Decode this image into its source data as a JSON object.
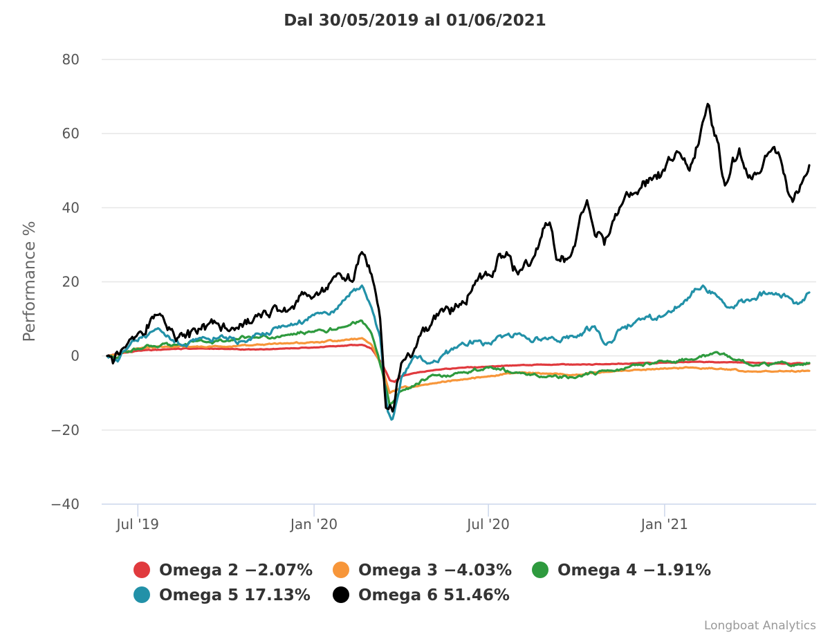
{
  "chart_data": {
    "type": "line",
    "title": "Dal 30/05/2019 al 01/06/2021",
    "ylabel": "Performance %",
    "xlabel": "",
    "ylim": [
      -40,
      80
    ],
    "yticks": [
      80,
      60,
      40,
      20,
      0,
      -20,
      -40
    ],
    "ytick_labels": [
      "80",
      "60",
      "40",
      "20",
      "0",
      "−20",
      "−40"
    ],
    "xlim": [
      "2019-05-30",
      "2021-06-01"
    ],
    "xticks": [
      {
        "date": "2019-07-01",
        "label": "Jul '19"
      },
      {
        "date": "2020-01-01",
        "label": "Jan '20"
      },
      {
        "date": "2020-07-01",
        "label": "Jul '20"
      },
      {
        "date": "2021-01-01",
        "label": "Jan '21"
      }
    ],
    "grid": true,
    "legend_position": "bottom",
    "credits": "Longboat Analytics",
    "series": [
      {
        "name": "Omega 2 −2.07%",
        "color": "#e03a3e",
        "points": [
          [
            "2019-05-30",
            0
          ],
          [
            "2019-06-15",
            0.8
          ],
          [
            "2019-07-01",
            1.4
          ],
          [
            "2019-08-01",
            1.8
          ],
          [
            "2019-09-01",
            2.0
          ],
          [
            "2019-10-01",
            1.9
          ],
          [
            "2019-11-01",
            1.7
          ],
          [
            "2019-12-01",
            2.0
          ],
          [
            "2020-01-01",
            2.3
          ],
          [
            "2020-02-01",
            2.7
          ],
          [
            "2020-02-20",
            3.0
          ],
          [
            "2020-03-01",
            2.0
          ],
          [
            "2020-03-12",
            -2.0
          ],
          [
            "2020-03-20",
            -6.5
          ],
          [
            "2020-03-25",
            -7.0
          ],
          [
            "2020-04-01",
            -5.5
          ],
          [
            "2020-04-15",
            -4.6
          ],
          [
            "2020-05-01",
            -4.0
          ],
          [
            "2020-06-01",
            -3.2
          ],
          [
            "2020-07-01",
            -2.9
          ],
          [
            "2020-08-01",
            -2.5
          ],
          [
            "2020-09-01",
            -2.4
          ],
          [
            "2020-10-01",
            -2.3
          ],
          [
            "2020-11-01",
            -2.2
          ],
          [
            "2020-12-01",
            -2.0
          ],
          [
            "2021-01-01",
            -1.8
          ],
          [
            "2021-02-01",
            -1.6
          ],
          [
            "2021-03-01",
            -1.7
          ],
          [
            "2021-04-01",
            -1.8
          ],
          [
            "2021-05-01",
            -2.0
          ],
          [
            "2021-06-01",
            -2.07
          ]
        ]
      },
      {
        "name": "Omega 3 −4.03%",
        "color": "#f7963a",
        "points": [
          [
            "2019-05-30",
            0
          ],
          [
            "2019-06-15",
            1.0
          ],
          [
            "2019-07-01",
            2.0
          ],
          [
            "2019-08-01",
            2.5
          ],
          [
            "2019-09-01",
            2.6
          ],
          [
            "2019-10-01",
            2.4
          ],
          [
            "2019-11-01",
            3.0
          ],
          [
            "2019-12-01",
            3.4
          ],
          [
            "2020-01-01",
            3.6
          ],
          [
            "2020-02-01",
            4.2
          ],
          [
            "2020-02-20",
            4.8
          ],
          [
            "2020-03-01",
            3.0
          ],
          [
            "2020-03-12",
            -3.0
          ],
          [
            "2020-03-20",
            -10.0
          ],
          [
            "2020-03-25",
            -9.5
          ],
          [
            "2020-04-01",
            -8.5
          ],
          [
            "2020-04-15",
            -8.3
          ],
          [
            "2020-05-01",
            -7.5
          ],
          [
            "2020-06-01",
            -6.5
          ],
          [
            "2020-07-01",
            -5.5
          ],
          [
            "2020-08-01",
            -4.5
          ],
          [
            "2020-09-01",
            -4.8
          ],
          [
            "2020-10-01",
            -5.0
          ],
          [
            "2020-11-01",
            -4.3
          ],
          [
            "2020-12-01",
            -3.7
          ],
          [
            "2021-01-01",
            -3.3
          ],
          [
            "2021-02-01",
            -3.2
          ],
          [
            "2021-03-01",
            -3.4
          ],
          [
            "2021-04-01",
            -4.2
          ],
          [
            "2021-05-01",
            -4.0
          ],
          [
            "2021-06-01",
            -4.03
          ]
        ]
      },
      {
        "name": "Omega 4 −1.91%",
        "color": "#2e9a3e",
        "points": [
          [
            "2019-05-30",
            0
          ],
          [
            "2019-06-10",
            -0.5
          ],
          [
            "2019-06-20",
            1.0
          ],
          [
            "2019-07-01",
            2.0
          ],
          [
            "2019-07-20",
            2.5
          ],
          [
            "2019-08-10",
            3.0
          ],
          [
            "2019-09-01",
            4.0
          ],
          [
            "2019-10-01",
            4.0
          ],
          [
            "2019-11-01",
            5.0
          ],
          [
            "2019-12-01",
            5.5
          ],
          [
            "2020-01-01",
            6.5
          ],
          [
            "2020-02-01",
            7.8
          ],
          [
            "2020-02-20",
            9.5
          ],
          [
            "2020-03-01",
            6.0
          ],
          [
            "2020-03-12",
            -4.0
          ],
          [
            "2020-03-20",
            -13.5
          ],
          [
            "2020-03-25",
            -12.0
          ],
          [
            "2020-04-01",
            -9.5
          ],
          [
            "2020-04-15",
            -8.0
          ],
          [
            "2020-05-01",
            -5.5
          ],
          [
            "2020-06-01",
            -4.5
          ],
          [
            "2020-07-01",
            -3.2
          ],
          [
            "2020-08-01",
            -4.6
          ],
          [
            "2020-09-01",
            -5.5
          ],
          [
            "2020-10-01",
            -5.8
          ],
          [
            "2020-11-01",
            -4.0
          ],
          [
            "2020-12-01",
            -2.5
          ],
          [
            "2021-01-01",
            -1.5
          ],
          [
            "2021-02-01",
            -1.0
          ],
          [
            "2021-02-25",
            1.0
          ],
          [
            "2021-03-15",
            -1.0
          ],
          [
            "2021-04-01",
            -2.5
          ],
          [
            "2021-05-01",
            -1.8
          ],
          [
            "2021-05-20",
            -2.3
          ],
          [
            "2021-06-01",
            -1.91
          ]
        ]
      },
      {
        "name": "Omega 5 17.13%",
        "color": "#2291a8",
        "points": [
          [
            "2019-05-30",
            0
          ],
          [
            "2019-06-10",
            -1.5
          ],
          [
            "2019-06-20",
            2.0
          ],
          [
            "2019-07-01",
            4.0
          ],
          [
            "2019-07-15",
            6.5
          ],
          [
            "2019-08-01",
            5.5
          ],
          [
            "2019-08-15",
            3.0
          ],
          [
            "2019-09-01",
            4.5
          ],
          [
            "2019-10-01",
            5.0
          ],
          [
            "2019-10-20",
            4.0
          ],
          [
            "2019-11-01",
            6.0
          ],
          [
            "2019-12-01",
            8.0
          ],
          [
            "2020-01-01",
            11.0
          ],
          [
            "2020-01-20",
            12.0
          ],
          [
            "2020-02-01",
            15.0
          ],
          [
            "2020-02-20",
            19.0
          ],
          [
            "2020-03-01",
            13.0
          ],
          [
            "2020-03-10",
            5.0
          ],
          [
            "2020-03-18",
            -15.0
          ],
          [
            "2020-03-23",
            -17.0
          ],
          [
            "2020-04-01",
            -6.0
          ],
          [
            "2020-04-15",
            0.0
          ],
          [
            "2020-05-01",
            -2.0
          ],
          [
            "2020-06-01",
            3.0
          ],
          [
            "2020-06-20",
            4.0
          ],
          [
            "2020-07-01",
            3.5
          ],
          [
            "2020-07-15",
            5.0
          ],
          [
            "2020-08-01",
            6.0
          ],
          [
            "2020-09-01",
            4.5
          ],
          [
            "2020-10-01",
            5.0
          ],
          [
            "2020-10-20",
            8.0
          ],
          [
            "2020-11-01",
            3.0
          ],
          [
            "2020-11-15",
            7.0
          ],
          [
            "2020-12-01",
            9.0
          ],
          [
            "2021-01-01",
            11.0
          ],
          [
            "2021-01-20",
            14.0
          ],
          [
            "2021-02-10",
            19.0
          ],
          [
            "2021-02-25",
            16.0
          ],
          [
            "2021-03-10",
            13.0
          ],
          [
            "2021-04-01",
            15.0
          ],
          [
            "2021-04-20",
            17.0
          ],
          [
            "2021-05-10",
            16.0
          ],
          [
            "2021-05-20",
            14.0
          ],
          [
            "2021-06-01",
            17.13
          ]
        ]
      },
      {
        "name": "Omega 6 51.46%",
        "color": "#000000",
        "points": [
          [
            "2019-05-30",
            0
          ],
          [
            "2019-06-05",
            -2.0
          ],
          [
            "2019-06-15",
            2.0
          ],
          [
            "2019-07-01",
            6.0
          ],
          [
            "2019-07-20",
            11.0
          ],
          [
            "2019-08-01",
            7.0
          ],
          [
            "2019-08-10",
            4.0
          ],
          [
            "2019-09-01",
            6.0
          ],
          [
            "2019-09-20",
            9.0
          ],
          [
            "2019-10-10",
            7.0
          ],
          [
            "2019-11-01",
            11.0
          ],
          [
            "2019-12-01",
            13.0
          ],
          [
            "2020-01-01",
            16.0
          ],
          [
            "2020-01-15",
            18.0
          ],
          [
            "2020-02-01",
            21.0
          ],
          [
            "2020-02-10",
            20.0
          ],
          [
            "2020-02-20",
            28.0
          ],
          [
            "2020-03-01",
            22.0
          ],
          [
            "2020-03-10",
            10.0
          ],
          [
            "2020-03-16",
            -14.0
          ],
          [
            "2020-03-23",
            -15.0
          ],
          [
            "2020-04-01",
            -2.0
          ],
          [
            "2020-04-15",
            2.0
          ],
          [
            "2020-05-01",
            8.0
          ],
          [
            "2020-05-15",
            12.0
          ],
          [
            "2020-06-01",
            14.0
          ],
          [
            "2020-06-15",
            19.0
          ],
          [
            "2020-07-01",
            22.0
          ],
          [
            "2020-07-20",
            28.0
          ],
          [
            "2020-08-01",
            22.0
          ],
          [
            "2020-08-20",
            29.0
          ],
          [
            "2020-09-03",
            36.0
          ],
          [
            "2020-09-10",
            26.0
          ],
          [
            "2020-09-25",
            27.0
          ],
          [
            "2020-10-12",
            42.0
          ],
          [
            "2020-10-30",
            30.0
          ],
          [
            "2020-11-15",
            40.0
          ],
          [
            "2020-12-01",
            44.0
          ],
          [
            "2020-12-20",
            48.0
          ],
          [
            "2021-01-01",
            50.0
          ],
          [
            "2021-01-15",
            55.0
          ],
          [
            "2021-01-27",
            50.0
          ],
          [
            "2021-02-15",
            68.0
          ],
          [
            "2021-02-25",
            58.0
          ],
          [
            "2021-03-05",
            46.0
          ],
          [
            "2021-03-20",
            56.0
          ],
          [
            "2021-04-01",
            48.0
          ],
          [
            "2021-04-20",
            55.0
          ],
          [
            "2021-05-01",
            54.0
          ],
          [
            "2021-05-12",
            43.0
          ],
          [
            "2021-05-20",
            44.0
          ],
          [
            "2021-06-01",
            51.46
          ]
        ]
      }
    ]
  }
}
